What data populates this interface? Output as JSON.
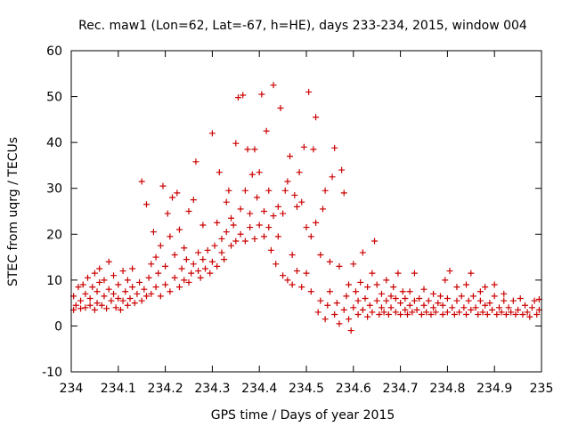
{
  "chart_data": {
    "type": "scatter",
    "title": "Rec. maw1 (Lon=62, Lat=-67, h=HE), days 233-234, 2015, window 004",
    "xlabel": "GPS time / Days of year 2015",
    "ylabel": "STEC from uqrg / TECUs",
    "xlim": [
      234,
      235
    ],
    "ylim": [
      -10,
      60
    ],
    "xticks": [
      "234",
      "234.1",
      "234.2",
      "234.3",
      "234.4",
      "234.5",
      "234.6",
      "234.7",
      "234.8",
      "234.9",
      "235"
    ],
    "yticks": [
      "-10",
      "0",
      "10",
      "20",
      "30",
      "40",
      "50",
      "60"
    ],
    "grid": false,
    "marker": "plus",
    "color": "#cc0000",
    "series": [
      {
        "points": [
          [
            234.005,
            3.5
          ],
          [
            234.005,
            6.5
          ],
          [
            234.01,
            4.5
          ],
          [
            234.015,
            8.5
          ],
          [
            234.02,
            3.8
          ],
          [
            234.02,
            5.5
          ],
          [
            234.025,
            9.0
          ],
          [
            234.03,
            4.0
          ],
          [
            234.03,
            7.0
          ],
          [
            234.035,
            10.5
          ],
          [
            234.04,
            4.5
          ],
          [
            234.04,
            6.0
          ],
          [
            234.045,
            8.5
          ],
          [
            234.05,
            3.5
          ],
          [
            234.05,
            11.5
          ],
          [
            234.055,
            5.0
          ],
          [
            234.055,
            7.5
          ],
          [
            234.06,
            9.5
          ],
          [
            234.06,
            12.5
          ],
          [
            234.065,
            4.5
          ],
          [
            234.07,
            6.5
          ],
          [
            234.07,
            10.0
          ],
          [
            234.075,
            3.8
          ],
          [
            234.08,
            8.0
          ],
          [
            234.08,
            14.0
          ],
          [
            234.085,
            5.5
          ],
          [
            234.09,
            7.0
          ],
          [
            234.09,
            11.0
          ],
          [
            234.095,
            4.0
          ],
          [
            234.1,
            6.0
          ],
          [
            234.1,
            9.0
          ],
          [
            234.105,
            3.5
          ],
          [
            234.11,
            5.5
          ],
          [
            234.11,
            12.0
          ],
          [
            234.115,
            7.5
          ],
          [
            234.12,
            4.5
          ],
          [
            234.12,
            10.0
          ],
          [
            234.125,
            6.0
          ],
          [
            234.13,
            8.5
          ],
          [
            234.13,
            12.5
          ],
          [
            234.135,
            5.0
          ],
          [
            234.14,
            7.0
          ],
          [
            234.145,
            9.5
          ],
          [
            234.15,
            5.5
          ],
          [
            234.15,
            31.5
          ],
          [
            234.155,
            8.0
          ],
          [
            234.16,
            6.5
          ],
          [
            234.16,
            26.5
          ],
          [
            234.165,
            10.5
          ],
          [
            234.17,
            7.0
          ],
          [
            234.17,
            13.5
          ],
          [
            234.175,
            20.5
          ],
          [
            234.18,
            8.5
          ],
          [
            234.18,
            15.0
          ],
          [
            234.185,
            11.5
          ],
          [
            234.19,
            6.5
          ],
          [
            234.19,
            17.5
          ],
          [
            234.195,
            30.5
          ],
          [
            234.2,
            9.0
          ],
          [
            234.2,
            13.0
          ],
          [
            234.205,
            24.5
          ],
          [
            234.21,
            7.5
          ],
          [
            234.21,
            19.5
          ],
          [
            234.215,
            28.0
          ],
          [
            234.22,
            10.5
          ],
          [
            234.22,
            15.5
          ],
          [
            234.225,
            29.0
          ],
          [
            234.23,
            8.5
          ],
          [
            234.23,
            21.0
          ],
          [
            234.235,
            12.5
          ],
          [
            234.24,
            10.0
          ],
          [
            234.24,
            17.0
          ],
          [
            234.245,
            14.5
          ],
          [
            234.25,
            9.5
          ],
          [
            234.25,
            25.0
          ],
          [
            234.255,
            11.5
          ],
          [
            234.26,
            13.5
          ],
          [
            234.26,
            27.5
          ],
          [
            234.265,
            35.8
          ],
          [
            234.27,
            12.0
          ],
          [
            234.27,
            16.0
          ],
          [
            234.275,
            10.5
          ],
          [
            234.28,
            14.5
          ],
          [
            234.28,
            22.0
          ],
          [
            234.285,
            12.5
          ],
          [
            234.29,
            16.5
          ],
          [
            234.295,
            11.5
          ],
          [
            234.3,
            14.0
          ],
          [
            234.3,
            42.0
          ],
          [
            234.305,
            17.5
          ],
          [
            234.31,
            13.0
          ],
          [
            234.31,
            22.5
          ],
          [
            234.315,
            33.5
          ],
          [
            234.32,
            16.0
          ],
          [
            234.32,
            19.0
          ],
          [
            234.325,
            14.5
          ],
          [
            234.33,
            20.5
          ],
          [
            234.33,
            27.0
          ],
          [
            234.335,
            29.5
          ],
          [
            234.34,
            17.5
          ],
          [
            234.34,
            23.5
          ],
          [
            234.345,
            22.0
          ],
          [
            234.35,
            18.5
          ],
          [
            234.35,
            39.8
          ],
          [
            234.355,
            49.8
          ],
          [
            234.36,
            20.0
          ],
          [
            234.36,
            25.5
          ],
          [
            234.365,
            50.3
          ],
          [
            234.37,
            18.5
          ],
          [
            234.37,
            29.5
          ],
          [
            234.375,
            38.5
          ],
          [
            234.38,
            21.5
          ],
          [
            234.38,
            24.5
          ],
          [
            234.385,
            33.0
          ],
          [
            234.39,
            19.0
          ],
          [
            234.39,
            38.5
          ],
          [
            234.395,
            28.0
          ],
          [
            234.4,
            22.0
          ],
          [
            234.4,
            33.5
          ],
          [
            234.405,
            50.5
          ],
          [
            234.41,
            19.5
          ],
          [
            234.41,
            25.0
          ],
          [
            234.415,
            42.5
          ],
          [
            234.42,
            21.5
          ],
          [
            234.42,
            29.5
          ],
          [
            234.425,
            16.5
          ],
          [
            234.43,
            24.0
          ],
          [
            234.43,
            52.5
          ],
          [
            234.435,
            13.5
          ],
          [
            234.44,
            19.5
          ],
          [
            234.44,
            26.0
          ],
          [
            234.445,
            47.5
          ],
          [
            234.45,
            11.0
          ],
          [
            234.45,
            24.5
          ],
          [
            234.455,
            29.5
          ],
          [
            234.46,
            10.0
          ],
          [
            234.46,
            31.5
          ],
          [
            234.465,
            37.0
          ],
          [
            234.47,
            9.0
          ],
          [
            234.47,
            15.5
          ],
          [
            234.475,
            28.5
          ],
          [
            234.48,
            12.0
          ],
          [
            234.48,
            26.0
          ],
          [
            234.485,
            33.5
          ],
          [
            234.49,
            8.5
          ],
          [
            234.49,
            27.0
          ],
          [
            234.495,
            39.0
          ],
          [
            234.5,
            11.5
          ],
          [
            234.5,
            21.5
          ],
          [
            234.505,
            51.0
          ],
          [
            234.51,
            7.5
          ],
          [
            234.51,
            19.5
          ],
          [
            234.515,
            38.5
          ],
          [
            234.52,
            22.5
          ],
          [
            234.52,
            45.5
          ],
          [
            234.525,
            3.0
          ],
          [
            234.53,
            5.5
          ],
          [
            234.53,
            15.5
          ],
          [
            234.535,
            25.5
          ],
          [
            234.54,
            29.5
          ],
          [
            234.54,
            1.5
          ],
          [
            234.545,
            4.5
          ],
          [
            234.55,
            7.5
          ],
          [
            234.55,
            14.0
          ],
          [
            234.555,
            32.5
          ],
          [
            234.56,
            2.5
          ],
          [
            234.56,
            38.8
          ],
          [
            234.565,
            5.0
          ],
          [
            234.57,
            0.5
          ],
          [
            234.57,
            13.0
          ],
          [
            234.575,
            34.0
          ],
          [
            234.58,
            29.0
          ],
          [
            234.58,
            3.5
          ],
          [
            234.585,
            6.5
          ],
          [
            234.59,
            1.5
          ],
          [
            234.59,
            9.0
          ],
          [
            234.595,
            -1.0
          ],
          [
            234.6,
            4.0
          ],
          [
            234.6,
            13.5
          ],
          [
            234.605,
            7.5
          ],
          [
            234.61,
            2.5
          ],
          [
            234.61,
            5.5
          ],
          [
            234.615,
            9.5
          ],
          [
            234.62,
            3.5
          ],
          [
            234.62,
            16.0
          ],
          [
            234.625,
            6.0
          ],
          [
            234.63,
            2.0
          ],
          [
            234.63,
            8.5
          ],
          [
            234.635,
            4.5
          ],
          [
            234.64,
            3.0
          ],
          [
            234.64,
            11.5
          ],
          [
            234.645,
            18.5
          ],
          [
            234.65,
            5.5
          ],
          [
            234.65,
            9.0
          ],
          [
            234.655,
            2.5
          ],
          [
            234.66,
            4.0
          ],
          [
            234.66,
            7.0
          ],
          [
            234.665,
            3.0
          ],
          [
            234.67,
            5.5
          ],
          [
            234.67,
            10.0
          ],
          [
            234.675,
            2.5
          ],
          [
            234.68,
            6.5
          ],
          [
            234.68,
            4.0
          ],
          [
            234.685,
            8.5
          ],
          [
            234.69,
            3.0
          ],
          [
            234.69,
            6.0
          ],
          [
            234.695,
            11.5
          ],
          [
            234.7,
            2.5
          ],
          [
            234.7,
            5.0
          ],
          [
            234.705,
            7.5
          ],
          [
            234.71,
            3.5
          ],
          [
            234.71,
            6.0
          ],
          [
            234.715,
            2.5
          ],
          [
            234.72,
            4.5
          ],
          [
            234.72,
            7.5
          ],
          [
            234.725,
            3.0
          ],
          [
            234.73,
            5.5
          ],
          [
            234.73,
            11.5
          ],
          [
            234.735,
            3.5
          ],
          [
            234.74,
            6.0
          ],
          [
            234.745,
            2.5
          ],
          [
            234.75,
            4.5
          ],
          [
            234.75,
            8.0
          ],
          [
            234.755,
            3.0
          ],
          [
            234.76,
            5.5
          ],
          [
            234.765,
            2.5
          ],
          [
            234.77,
            4.0
          ],
          [
            234.77,
            7.0
          ],
          [
            234.775,
            3.0
          ],
          [
            234.78,
            5.0
          ],
          [
            234.785,
            6.5
          ],
          [
            234.79,
            2.5
          ],
          [
            234.79,
            4.5
          ],
          [
            234.795,
            10.0
          ],
          [
            234.8,
            3.0
          ],
          [
            234.8,
            6.0
          ],
          [
            234.805,
            12.0
          ],
          [
            234.81,
            4.0
          ],
          [
            234.815,
            2.5
          ],
          [
            234.82,
            5.5
          ],
          [
            234.82,
            8.5
          ],
          [
            234.825,
            3.0
          ],
          [
            234.83,
            6.5
          ],
          [
            234.835,
            4.0
          ],
          [
            234.84,
            2.5
          ],
          [
            234.84,
            9.0
          ],
          [
            234.845,
            5.5
          ],
          [
            234.85,
            3.5
          ],
          [
            234.85,
            11.5
          ],
          [
            234.855,
            6.5
          ],
          [
            234.86,
            4.0
          ],
          [
            234.865,
            2.5
          ],
          [
            234.87,
            5.5
          ],
          [
            234.87,
            7.5
          ],
          [
            234.875,
            3.0
          ],
          [
            234.88,
            4.5
          ],
          [
            234.88,
            8.5
          ],
          [
            234.885,
            2.5
          ],
          [
            234.89,
            5.0
          ],
          [
            234.895,
            3.5
          ],
          [
            234.9,
            6.5
          ],
          [
            234.9,
            9.0
          ],
          [
            234.905,
            2.5
          ],
          [
            234.91,
            4.0
          ],
          [
            234.915,
            3.0
          ],
          [
            234.92,
            5.5
          ],
          [
            234.92,
            7.0
          ],
          [
            234.925,
            2.5
          ],
          [
            234.93,
            4.0
          ],
          [
            234.935,
            3.0
          ],
          [
            234.94,
            5.5
          ],
          [
            234.945,
            2.5
          ],
          [
            234.95,
            3.5
          ],
          [
            234.955,
            6.0
          ],
          [
            234.96,
            2.5
          ],
          [
            234.965,
            4.5
          ],
          [
            234.97,
            3.0
          ],
          [
            234.975,
            2.0
          ],
          [
            234.98,
            4.0
          ],
          [
            234.985,
            5.5
          ],
          [
            234.99,
            2.5
          ],
          [
            234.995,
            3.5
          ],
          [
            234.995,
            5.8
          ]
        ]
      }
    ]
  }
}
